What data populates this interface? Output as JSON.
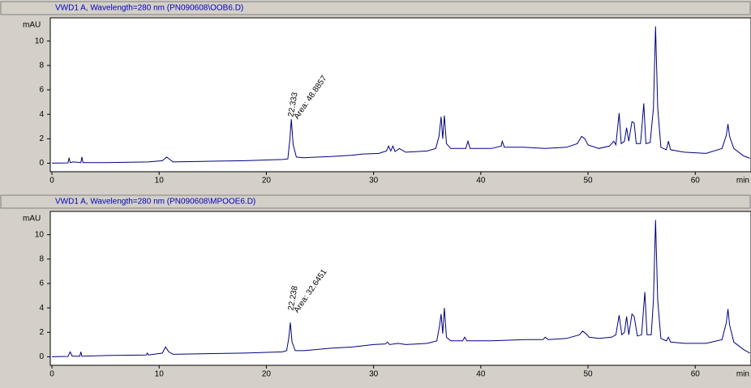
{
  "chart_data": [
    {
      "type": "line",
      "title": "VWD1 A, Wavelength=280 nm (PN090608\\OOB6.D)",
      "y_label": "mAU",
      "x_label": "min",
      "annotations": [
        "22.333",
        "Area: 48.8857"
      ],
      "color": "#000080",
      "xlim": [
        0,
        65.2
      ],
      "ylim": [
        -0.7,
        11.9
      ],
      "xticks": [
        0,
        10,
        20,
        30,
        40,
        50,
        60
      ],
      "yticks": [
        0,
        2,
        4,
        6,
        8,
        10
      ],
      "x": [
        0,
        1.5,
        1.6,
        1.7,
        2.0,
        2.7,
        2.8,
        2.9,
        5,
        9,
        10.3,
        10.7,
        11,
        11.3,
        14,
        18,
        21.5,
        22.0,
        22.2,
        22.33,
        22.5,
        22.8,
        23.5,
        26,
        28,
        29,
        30.5,
        31.2,
        31.4,
        31.6,
        31.8,
        32,
        32.4,
        33,
        35,
        35.8,
        36.1,
        36.3,
        36.45,
        36.6,
        36.8,
        37.2,
        38.6,
        38.8,
        39,
        41,
        41.9,
        42.0,
        42.2,
        44,
        46,
        48,
        49,
        49.4,
        49.7,
        50,
        51,
        52,
        52.4,
        52.6,
        52.9,
        53.1,
        53.4,
        53.6,
        53.8,
        54.1,
        54.3,
        54.5,
        54.9,
        55.2,
        55.4,
        55.8,
        56.1,
        56.3,
        56.5,
        56.8,
        57.3,
        57.5,
        57.7,
        59,
        61,
        62.5,
        62.9,
        63.05,
        63.2,
        63.6,
        64.5,
        65.1
      ],
      "values": [
        0,
        0.02,
        0.45,
        0.05,
        0.1,
        0.05,
        0.5,
        0.05,
        0.05,
        0.1,
        0.2,
        0.5,
        0.3,
        0.1,
        0.15,
        0.2,
        0.3,
        0.35,
        2.0,
        3.6,
        1.5,
        0.5,
        0.45,
        0.55,
        0.65,
        0.75,
        0.8,
        1.0,
        1.4,
        1.0,
        1.4,
        0.95,
        1.2,
        0.9,
        1.0,
        1.2,
        2.2,
        3.8,
        2.0,
        3.9,
        1.6,
        1.2,
        1.2,
        1.8,
        1.2,
        1.2,
        1.4,
        1.8,
        1.3,
        1.3,
        1.2,
        1.3,
        1.6,
        2.2,
        2.0,
        1.5,
        1.2,
        1.4,
        1.8,
        1.5,
        4.1,
        1.6,
        1.8,
        2.9,
        1.8,
        3.4,
        3.3,
        1.6,
        1.6,
        4.9,
        1.6,
        1.7,
        4.5,
        11.2,
        4.5,
        1.3,
        1.1,
        1.8,
        1.1,
        0.9,
        0.8,
        1.2,
        2.3,
        3.2,
        2.2,
        1.2,
        0.6,
        0.4
      ]
    },
    {
      "type": "line",
      "title": "VWD1 A, Wavelength=280 nm (PN090608\\MPOOE6.D)",
      "y_label": "mAU",
      "x_label": "min",
      "annotations": [
        "22.238",
        "Area: 32.6451"
      ],
      "color": "#000080",
      "xlim": [
        0,
        65.2
      ],
      "ylim": [
        -0.7,
        11.9
      ],
      "xticks": [
        0,
        10,
        20,
        30,
        40,
        50,
        60
      ],
      "yticks": [
        0,
        2,
        4,
        6,
        8,
        10
      ],
      "x": [
        0,
        1.5,
        1.7,
        1.9,
        2.6,
        2.7,
        2.8,
        5,
        8.8,
        8.9,
        9.0,
        10.3,
        10.6,
        10.9,
        11.3,
        14,
        18,
        21.5,
        21.9,
        22.1,
        22.24,
        22.4,
        22.7,
        23.5,
        26,
        28,
        30,
        31.1,
        31.3,
        31.5,
        32.3,
        33,
        35,
        35.9,
        36.15,
        36.3,
        36.45,
        36.6,
        36.8,
        37.2,
        38.3,
        38.5,
        38.7,
        41,
        44,
        45.8,
        46,
        46.3,
        48,
        49.2,
        49.5,
        49.8,
        50.1,
        51,
        52.2,
        52.6,
        52.9,
        53.15,
        53.4,
        53.6,
        53.8,
        54.1,
        54.3,
        54.6,
        55.0,
        55.3,
        55.5,
        55.9,
        56.1,
        56.3,
        56.5,
        56.8,
        57.3,
        57.5,
        57.7,
        59,
        61,
        62.5,
        62.9,
        63.05,
        63.2,
        63.6,
        64.5,
        65.1
      ],
      "values": [
        0,
        0.03,
        0.4,
        0.05,
        0.05,
        0.4,
        0.05,
        0.1,
        0.15,
        0.3,
        0.15,
        0.3,
        0.8,
        0.4,
        0.2,
        0.25,
        0.3,
        0.4,
        0.5,
        1.6,
        2.8,
        1.2,
        0.5,
        0.5,
        0.7,
        0.8,
        1.0,
        1.05,
        1.2,
        1.0,
        1.1,
        1.0,
        1.1,
        1.3,
        2.5,
        3.5,
        1.9,
        4.0,
        1.6,
        1.3,
        1.3,
        1.6,
        1.3,
        1.3,
        1.4,
        1.4,
        1.6,
        1.4,
        1.5,
        1.8,
        2.1,
        1.9,
        1.6,
        1.5,
        1.6,
        1.8,
        3.4,
        1.8,
        2.0,
        3.3,
        1.8,
        3.5,
        3.3,
        1.7,
        1.8,
        5.3,
        1.8,
        1.8,
        4.6,
        11.2,
        4.6,
        1.5,
        1.3,
        1.6,
        1.2,
        1.1,
        1.1,
        1.4,
        2.8,
        3.9,
        2.6,
        1.2,
        0.6,
        0.3
      ]
    }
  ]
}
